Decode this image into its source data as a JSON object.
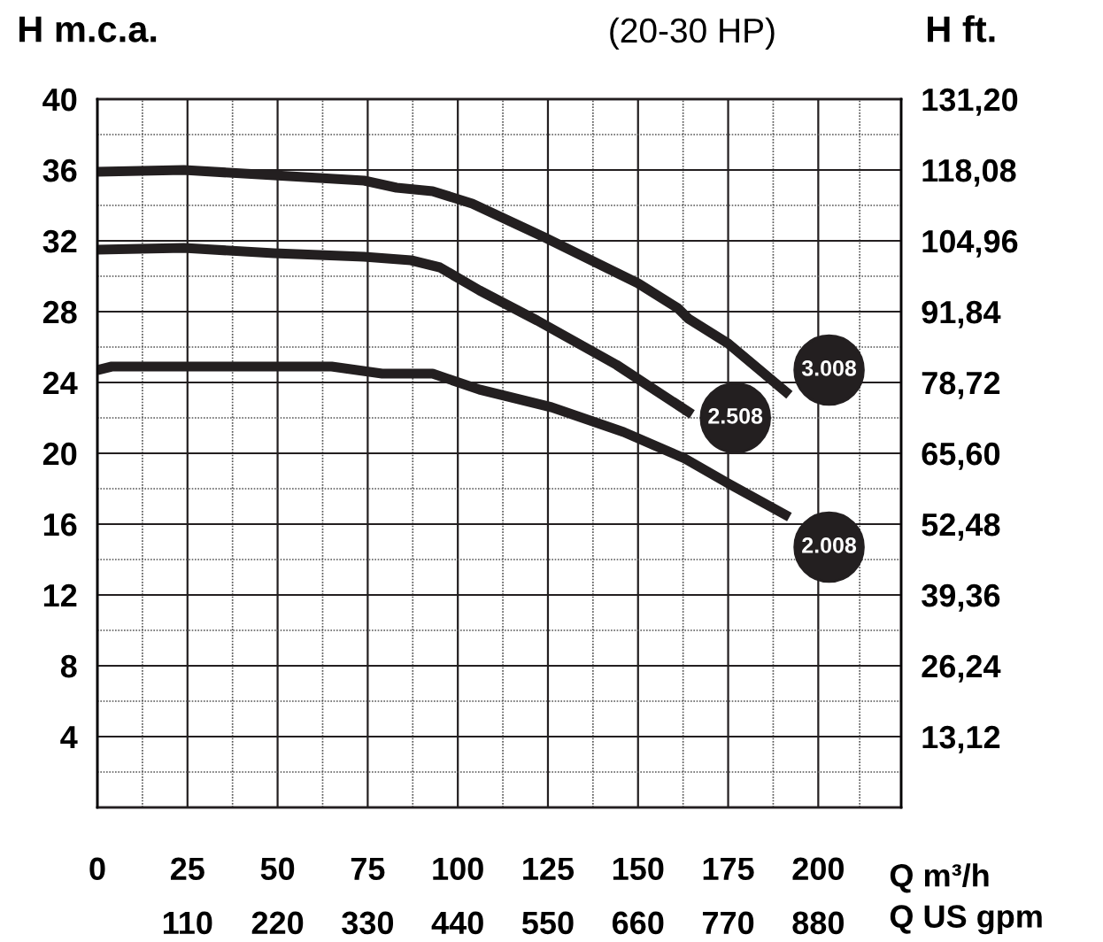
{
  "chart_data": {
    "type": "line",
    "title": "(20-30 HP)",
    "ylabel": "H m.c.a.",
    "y2label": "H ft.",
    "xlabel": "Q m³/h",
    "x2label": "Q US gpm",
    "xlim": [
      0,
      223
    ],
    "xticks": [
      0,
      25,
      50,
      75,
      100,
      125,
      150,
      175,
      200
    ],
    "x2lim": [
      0,
      981.2
    ],
    "x2ticks": [
      110,
      220,
      330,
      440,
      550,
      660,
      770,
      880
    ],
    "ylim": [
      0,
      40
    ],
    "yticks": [
      4,
      8,
      12,
      16,
      20,
      24,
      28,
      32,
      36,
      40
    ],
    "y2lim": [
      0,
      131.2
    ],
    "y2ticks": [
      {
        "value": 13.12,
        "label": "13,12"
      },
      {
        "value": 26.24,
        "label": "26,24"
      },
      {
        "value": 39.36,
        "label": "39,36"
      },
      {
        "value": 52.48,
        "label": "52,48"
      },
      {
        "value": 65.6,
        "label": "65,60"
      },
      {
        "value": 78.72,
        "label": "78,72"
      },
      {
        "value": 91.84,
        "label": "91,84"
      },
      {
        "value": 104.96,
        "label": "104,96"
      },
      {
        "value": 118.08,
        "label": "118,08"
      },
      {
        "value": 131.2,
        "label": "131,20"
      }
    ],
    "grid": true,
    "marker": "none",
    "line_style": "solid",
    "series": [
      {
        "name": "3.008",
        "color": "#231f20",
        "x": [
          0,
          24,
          49,
          74,
          83,
          93,
          104,
          124,
          150,
          161,
          164,
          175,
          192
        ],
        "values": [
          35.9,
          36.0,
          35.7,
          35.4,
          35.0,
          34.8,
          34.1,
          32.2,
          29.6,
          28.2,
          27.6,
          26.2,
          23.3
        ]
      },
      {
        "name": "2.508",
        "color": "#231f20",
        "x": [
          0,
          24,
          49,
          74,
          87,
          95,
          106,
          122,
          144,
          165
        ],
        "values": [
          31.5,
          31.6,
          31.3,
          31.1,
          30.9,
          30.5,
          29.2,
          27.5,
          25.0,
          22.2
        ]
      },
      {
        "name": "2.008",
        "color": "#231f20",
        "x": [
          0,
          4,
          65,
          79,
          93,
          106,
          126,
          146,
          163,
          175,
          192
        ],
        "values": [
          24.7,
          24.9,
          24.9,
          24.5,
          24.5,
          23.6,
          22.6,
          21.2,
          19.7,
          18.3,
          16.4
        ]
      }
    ]
  }
}
